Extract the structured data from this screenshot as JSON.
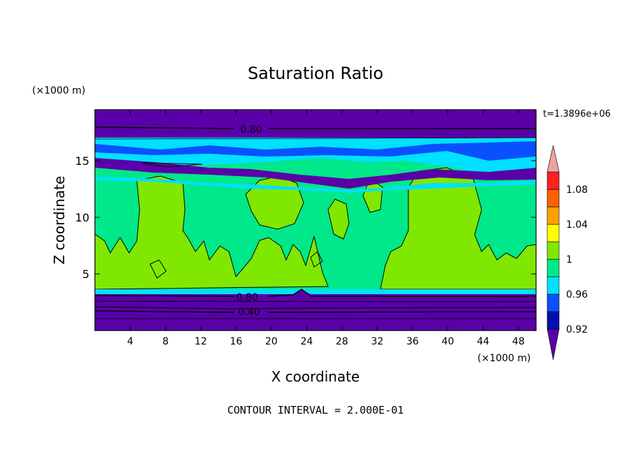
{
  "chart_data": {
    "type": "heatmap",
    "title": "Saturation Ratio",
    "xlabel": "X coordinate",
    "ylabel": "Z coordinate",
    "x_unit": "(×1000 m)",
    "y_unit": "(×1000 m)",
    "time_label": "t=1.3896e+06",
    "footer": "CONTOUR INTERVAL = 2.000E-01",
    "xlim": [
      0,
      50
    ],
    "ylim": [
      0,
      19.5
    ],
    "x_ticks": [
      4,
      8,
      12,
      16,
      20,
      24,
      28,
      32,
      36,
      40,
      44,
      48
    ],
    "y_ticks": [
      5,
      10,
      15
    ],
    "contour_labels": [
      {
        "text": "0.80",
        "x": 17.5,
        "y": 18.0
      },
      {
        "text": "0.80",
        "x": 17.5,
        "y": 2.9
      },
      {
        "text": "0.40",
        "x": 17.5,
        "y": 1.8
      }
    ],
    "colorbar": {
      "tick_labels": [
        "0.92",
        "0.96",
        "1",
        "1.04",
        "1.08"
      ],
      "levels": [
        0.92,
        0.94,
        0.96,
        0.98,
        1.0,
        1.02,
        1.04,
        1.06,
        1.08,
        1.1
      ],
      "colors": [
        "#5a00a8",
        "#0010b0",
        "#0a50ff",
        "#00e0ff",
        "#00e88a",
        "#80e800",
        "#ffff00",
        "#ffa000",
        "#ff6000",
        "#ff2020",
        "#f0a0a0"
      ]
    }
  }
}
